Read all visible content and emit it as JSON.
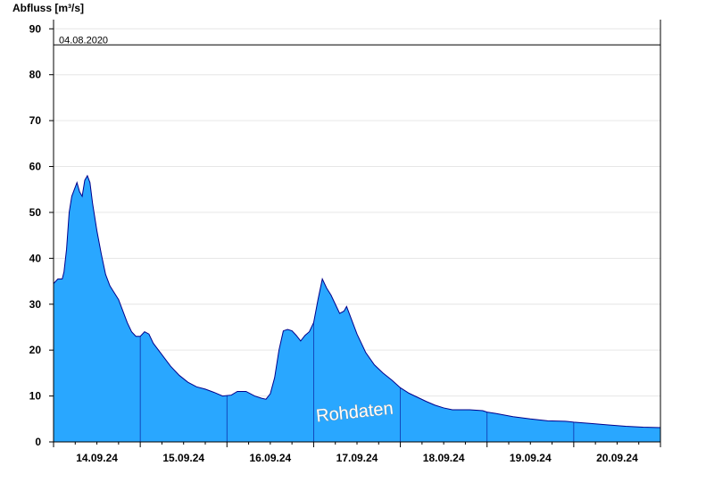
{
  "chart_data": {
    "type": "area",
    "ylabel": "Abfluss [m³/s]",
    "ylim": [
      0,
      92
    ],
    "y_ticks": [
      0,
      10,
      20,
      30,
      40,
      50,
      60,
      70,
      80,
      90
    ],
    "x_tick_labels": [
      "14.09.24",
      "15.09.24",
      "16.09.24",
      "17.09.24",
      "18.09.24",
      "19.09.24",
      "20.09.24"
    ],
    "x_day_range": [
      0,
      7
    ],
    "grid": true,
    "reference_line": {
      "label": "04.08.2020",
      "value": 86.5
    },
    "watermark": "Rohdaten",
    "colors": {
      "fill": "#29a7ff",
      "line": "#00008b",
      "grid": "#e6e6e6"
    },
    "series": [
      {
        "values": [
          [
            0.0,
            34.5
          ],
          [
            0.05,
            35.5
          ],
          [
            0.1,
            35.5
          ],
          [
            0.12,
            37
          ],
          [
            0.15,
            42
          ],
          [
            0.18,
            50
          ],
          [
            0.21,
            53.5
          ],
          [
            0.24,
            55
          ],
          [
            0.27,
            56.5
          ],
          [
            0.3,
            54.5
          ],
          [
            0.33,
            53.5
          ],
          [
            0.36,
            57
          ],
          [
            0.39,
            58
          ],
          [
            0.42,
            56.5
          ],
          [
            0.45,
            52
          ],
          [
            0.5,
            46
          ],
          [
            0.55,
            41
          ],
          [
            0.6,
            36.5
          ],
          [
            0.65,
            34
          ],
          [
            0.7,
            32.5
          ],
          [
            0.75,
            31
          ],
          [
            0.8,
            28.5
          ],
          [
            0.85,
            26
          ],
          [
            0.9,
            24
          ],
          [
            0.95,
            23
          ],
          [
            1.0,
            23
          ],
          [
            1.05,
            24
          ],
          [
            1.1,
            23.5
          ],
          [
            1.15,
            21.5
          ],
          [
            1.25,
            19
          ],
          [
            1.35,
            16.5
          ],
          [
            1.45,
            14.5
          ],
          [
            1.55,
            13
          ],
          [
            1.65,
            12
          ],
          [
            1.75,
            11.5
          ],
          [
            1.85,
            10.8
          ],
          [
            1.95,
            10
          ],
          [
            2.05,
            10.2
          ],
          [
            2.12,
            11
          ],
          [
            2.22,
            11
          ],
          [
            2.32,
            10
          ],
          [
            2.4,
            9.5
          ],
          [
            2.45,
            9.3
          ],
          [
            2.5,
            10.5
          ],
          [
            2.55,
            14
          ],
          [
            2.6,
            20
          ],
          [
            2.65,
            24.2
          ],
          [
            2.7,
            24.5
          ],
          [
            2.75,
            24.2
          ],
          [
            2.8,
            23.2
          ],
          [
            2.85,
            22
          ],
          [
            2.9,
            23.2
          ],
          [
            2.95,
            24
          ],
          [
            3.0,
            26
          ],
          [
            3.05,
            31
          ],
          [
            3.1,
            35.5
          ],
          [
            3.15,
            33.5
          ],
          [
            3.2,
            32
          ],
          [
            3.25,
            30
          ],
          [
            3.3,
            28
          ],
          [
            3.35,
            28.5
          ],
          [
            3.38,
            29.5
          ],
          [
            3.42,
            27.5
          ],
          [
            3.5,
            23.5
          ],
          [
            3.6,
            19.5
          ],
          [
            3.7,
            16.8
          ],
          [
            3.8,
            15
          ],
          [
            3.9,
            13.5
          ],
          [
            4.0,
            11.8
          ],
          [
            4.1,
            10.6
          ],
          [
            4.2,
            9.7
          ],
          [
            4.3,
            8.8
          ],
          [
            4.4,
            8
          ],
          [
            4.5,
            7.4
          ],
          [
            4.6,
            7
          ],
          [
            4.8,
            7
          ],
          [
            4.95,
            6.8
          ],
          [
            5.0,
            6.5
          ],
          [
            5.1,
            6.2
          ],
          [
            5.3,
            5.5
          ],
          [
            5.5,
            5
          ],
          [
            5.7,
            4.6
          ],
          [
            5.9,
            4.5
          ],
          [
            6.0,
            4.3
          ],
          [
            6.2,
            4
          ],
          [
            6.4,
            3.7
          ],
          [
            6.6,
            3.4
          ],
          [
            6.8,
            3.2
          ],
          [
            7.0,
            3.1
          ]
        ]
      }
    ]
  }
}
